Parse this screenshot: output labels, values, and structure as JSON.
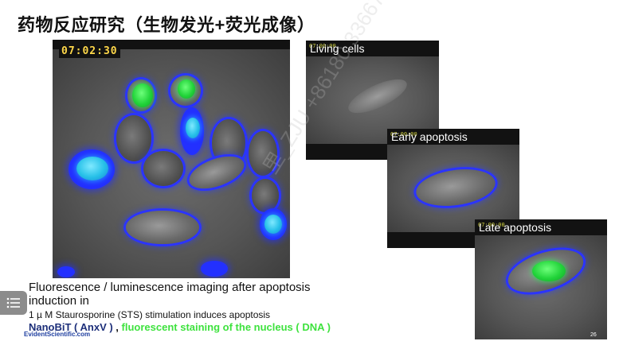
{
  "slide": {
    "title": "药物反应研究（生物发光+荧光成像）",
    "page_number": "26",
    "brand": "EvidentScientific.com",
    "watermark": "里_ZJU +86180 33667"
  },
  "main_panel": {
    "timestamp": "07:02:30"
  },
  "panels": [
    {
      "label": "Living cells",
      "timestamp": "07:00:00"
    },
    {
      "label": "Early apoptosis",
      "timestamp": "07:00:00"
    },
    {
      "label": "Late apoptosis",
      "timestamp": "07:00:00"
    }
  ],
  "caption": {
    "line1": "Fluorescence / luminescence imaging after apoptosis induction in",
    "line2": "1 µ M Staurosporine (STS) stimulation induces apoptosis",
    "nanobit": "NanoBiT ( AnxV )",
    "separator": " , ",
    "nucleus_stain": "fluorescent staining of the nucleus ( DNA )"
  },
  "icons": {
    "menu": "list-menu-icon"
  },
  "colors": {
    "nanobit_blue": "#1d2f7a",
    "nucleus_green": "#3ee23e",
    "membrane_blue": "#2b34ff",
    "timestamp_yellow": "#ffd84a"
  }
}
